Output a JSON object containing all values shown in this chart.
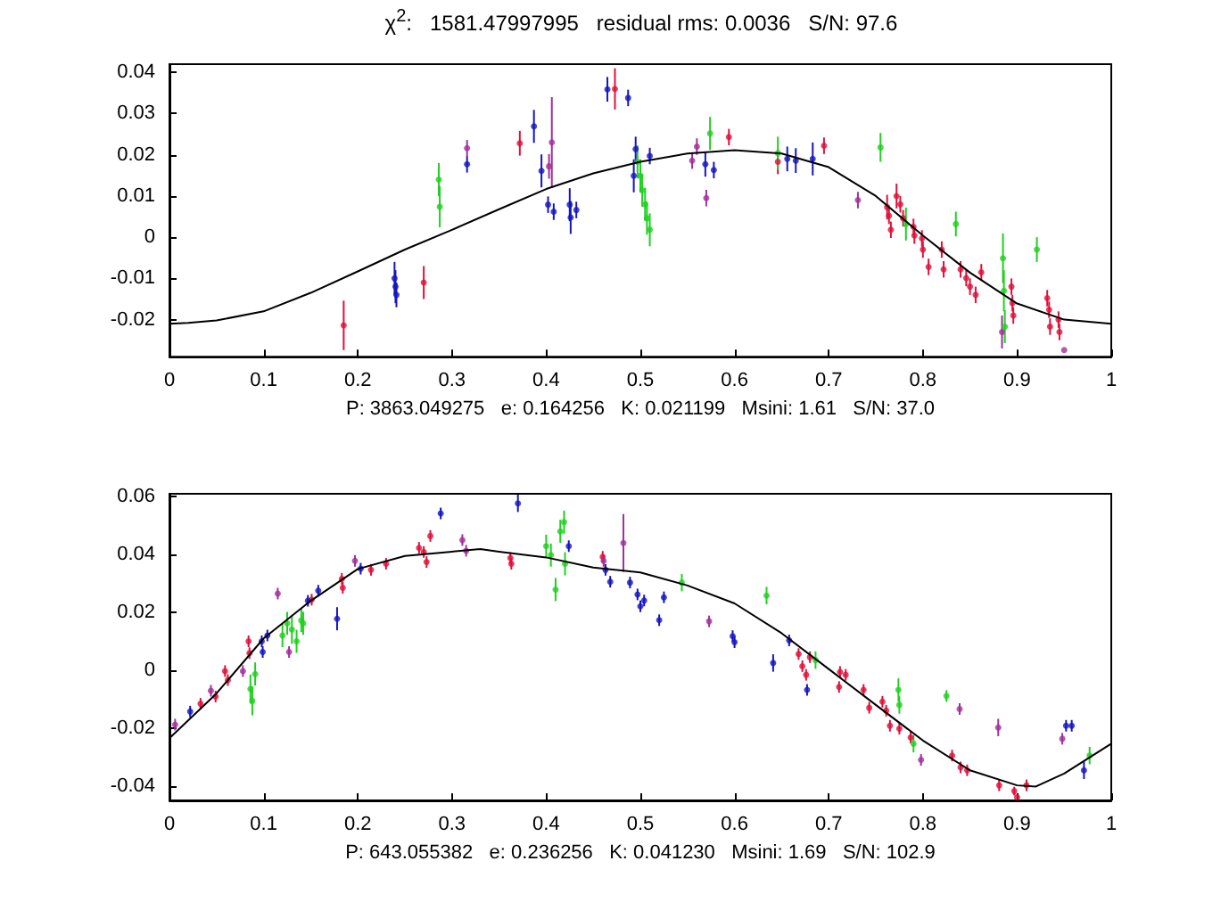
{
  "chart_data": [
    {
      "type": "scatter",
      "title": "χ$^{2}$:   1581.47997995   residual rms: 0.0036   S/N: 97.6",
      "xlabel": "P: 3863.049275   e: 0.164256   K: 0.021199   Msini: 1.61   S/N: 37.0",
      "marker": "circle",
      "xlim": [
        0,
        1
      ],
      "xticks": [
        0,
        0.1,
        0.2,
        0.3,
        0.4,
        0.5,
        0.6,
        0.7,
        0.8,
        0.9,
        1
      ],
      "ylim": [
        -0.029,
        0.042
      ],
      "yticks": [
        -0.02,
        -0.01,
        0,
        0.01,
        0.02,
        0.03,
        0.04
      ],
      "series": [
        {
          "color": "#e0103a",
          "x": [
            0.185,
            0.27,
            0.372,
            0.473,
            0.594,
            0.646,
            0.695,
            0.762,
            0.764,
            0.766,
            0.772,
            0.776,
            0.779,
            0.79,
            0.791,
            0.799,
            0.8,
            0.806,
            0.82,
            0.822,
            0.84,
            0.846,
            0.85,
            0.856,
            0.862,
            0.894,
            0.895,
            0.896,
            0.932,
            0.934,
            0.935,
            0.944,
            0.945
          ],
          "values": [
            -0.0214,
            -0.011,
            0.0228,
            0.036,
            0.0243,
            0.0183,
            0.0222,
            0.0073,
            0.0052,
            0.0018,
            0.01,
            0.008,
            0.0046,
            0.0025,
            0.0004,
            -0.0003,
            -0.003,
            -0.0072,
            -0.003,
            -0.0078,
            -0.0078,
            -0.0099,
            -0.012,
            -0.014,
            -0.0085,
            -0.012,
            -0.016,
            -0.019,
            -0.0148,
            -0.0176,
            -0.0217,
            -0.02,
            -0.023
          ],
          "errors": [
            0.006,
            0.004,
            0.003,
            0.005,
            0.002,
            0.003,
            0.002,
            0.003,
            0.002,
            0.002,
            0.003,
            0.002,
            0.002,
            0.002,
            0.002,
            0.002,
            0.002,
            0.002,
            0.002,
            0.002,
            0.002,
            0.002,
            0.002,
            0.002,
            0.002,
            0.002,
            0.002,
            0.002,
            0.002,
            0.002,
            0.002,
            0.002,
            0.002
          ]
        },
        {
          "color": "#20d020",
          "x": [
            0.286,
            0.287,
            0.497,
            0.5,
            0.502,
            0.505,
            0.507,
            0.51,
            0.574,
            0.646,
            0.755,
            0.782,
            0.835,
            0.885,
            0.886,
            0.887,
            0.921
          ],
          "values": [
            0.014,
            0.0074,
            0.0183,
            0.0149,
            0.0114,
            0.008,
            0.0046,
            0.0018,
            0.0252,
            0.0204,
            0.0218,
            0.0032,
            0.0032,
            -0.0051,
            -0.013,
            -0.0217,
            -0.003
          ],
          "errors": [
            0.004,
            0.005,
            0.004,
            0.004,
            0.004,
            0.004,
            0.004,
            0.004,
            0.004,
            0.004,
            0.0035,
            0.004,
            0.003,
            0.006,
            0.005,
            0.004,
            0.003
          ]
        },
        {
          "color": "#1515c0",
          "x": [
            0.239,
            0.24,
            0.241,
            0.316,
            0.387,
            0.395,
            0.402,
            0.408,
            0.425,
            0.426,
            0.432,
            0.465,
            0.487,
            0.495,
            0.493,
            0.51,
            0.569,
            0.578,
            0.656,
            0.665,
            0.683
          ],
          "values": [
            -0.01,
            -0.012,
            -0.014,
            0.0177,
            0.0269,
            0.0161,
            0.0079,
            0.0062,
            0.0079,
            0.0048,
            0.0066,
            0.0359,
            0.0338,
            0.0214,
            0.0149,
            0.0197,
            0.0177,
            0.0163,
            0.019,
            0.0186,
            0.019
          ],
          "errors": [
            0.004,
            0.004,
            0.003,
            0.002,
            0.004,
            0.004,
            0.002,
            0.002,
            0.004,
            0.004,
            0.002,
            0.003,
            0.002,
            0.003,
            0.004,
            0.002,
            0.003,
            0.002,
            0.003,
            0.003,
            0.004
          ]
        },
        {
          "color": "#a0309a",
          "x": [
            0.316,
            0.403,
            0.406,
            0.555,
            0.56,
            0.57,
            0.731,
            0.884,
            0.95
          ],
          "values": [
            0.0216,
            0.0172,
            0.023,
            0.0186,
            0.022,
            0.0095,
            0.009,
            -0.023,
            -0.0274
          ],
          "errors": [
            0.002,
            0.003,
            0.011,
            0.002,
            0.002,
            0.002,
            0.002,
            0.004,
            null
          ]
        },
        {
          "type": "line",
          "color": "#000000",
          "marker": "none",
          "line_style": "solid",
          "x": [
            0,
            0.02,
            0.05,
            0.1,
            0.15,
            0.2,
            0.25,
            0.3,
            0.35,
            0.4,
            0.45,
            0.5,
            0.55,
            0.6,
            0.65,
            0.7,
            0.75,
            0.8,
            0.85,
            0.9,
            0.95,
            1
          ],
          "values": [
            -0.021,
            -0.0208,
            -0.0202,
            -0.018,
            -0.0135,
            -0.0083,
            -0.003,
            0.0018,
            0.0068,
            0.0117,
            0.0155,
            0.0183,
            0.0203,
            0.0211,
            0.0203,
            0.017,
            0.01,
            0.0004,
            -0.0086,
            -0.0161,
            -0.02,
            -0.021
          ]
        }
      ]
    },
    {
      "type": "scatter",
      "xlabel": "P: 643.055382   e: 0.236256   K: 0.041230   Msini: 1.69   S/N: 102.9",
      "marker": "circle",
      "xlim": [
        0,
        1
      ],
      "xticks": [
        0,
        0.1,
        0.2,
        0.3,
        0.4,
        0.5,
        0.6,
        0.7,
        0.8,
        0.9,
        1
      ],
      "ylim": [
        -0.045,
        0.061
      ],
      "yticks": [
        -0.04,
        -0.02,
        0,
        0.02,
        0.04,
        0.06
      ],
      "series": [
        {
          "color": "#e0103a",
          "x": [
            0.033,
            0.049,
            0.059,
            0.062,
            0.084,
            0.085,
            0.151,
            0.183,
            0.184,
            0.214,
            0.23,
            0.265,
            0.27,
            0.273,
            0.277,
            0.362,
            0.363,
            0.46,
            0.668,
            0.672,
            0.676,
            0.68,
            0.711,
            0.712,
            0.718,
            0.737,
            0.743,
            0.757,
            0.761,
            0.765,
            0.775,
            0.787,
            0.831,
            0.84,
            0.847,
            0.881,
            0.897,
            0.9,
            0.91
          ],
          "values": [
            -0.0116,
            -0.0091,
            -0.0003,
            -0.0034,
            0.01,
            0.0059,
            0.0244,
            0.0316,
            0.0285,
            0.0347,
            0.0368,
            0.0423,
            0.0409,
            0.0374,
            0.0464,
            0.0388,
            0.0368,
            0.0392,
            0.0056,
            0.0014,
            -0.0016,
            0.0045,
            -0.0058,
            -0.0006,
            -0.0016,
            -0.0068,
            -0.013,
            -0.0109,
            -0.014,
            -0.0192,
            -0.0202,
            -0.0233,
            -0.0295,
            -0.0336,
            -0.0346,
            -0.0398,
            -0.0418,
            -0.0439,
            -0.0398
          ],
          "errors": [
            0.002,
            0.002,
            0.002,
            0.002,
            0.002,
            0.002,
            0.002,
            0.002,
            0.002,
            0.002,
            0.002,
            0.002,
            0.002,
            0.002,
            0.002,
            0.002,
            0.002,
            0.002,
            0.002,
            0.002,
            0.002,
            0.002,
            0.002,
            0.002,
            0.002,
            0.002,
            0.002,
            0.002,
            0.002,
            0.002,
            0.002,
            0.002,
            0.002,
            0.002,
            0.002,
            0.002,
            0.0015,
            null,
            0.002
          ]
        },
        {
          "color": "#20d020",
          "x": [
            0.086,
            0.088,
            0.091,
            0.12,
            0.125,
            0.13,
            0.135,
            0.14,
            0.142,
            0.4,
            0.405,
            0.41,
            0.415,
            0.419,
            0.42,
            0.544,
            0.634,
            0.686,
            0.774,
            0.775,
            0.79,
            0.825,
            0.977
          ],
          "values": [
            -0.0065,
            -0.0106,
            -0.0013,
            0.012,
            0.0162,
            0.0141,
            0.01,
            0.0172,
            0.0162,
            0.0429,
            0.0398,
            0.0279,
            0.048,
            0.0512,
            0.0368,
            0.0303,
            0.0258,
            0.0035,
            -0.0068,
            -0.012,
            -0.0254,
            -0.0089,
            -0.0295
          ],
          "errors": [
            0.005,
            0.005,
            0.004,
            0.004,
            0.004,
            0.005,
            0.004,
            0.004,
            0.004,
            0.004,
            0.004,
            0.004,
            0.004,
            0.004,
            0.004,
            0.003,
            0.003,
            0.003,
            0.004,
            0.003,
            0.003,
            0.002,
            0.003
          ]
        },
        {
          "color": "#1515c0",
          "x": [
            0.022,
            0.098,
            0.099,
            0.104,
            0.147,
            0.158,
            0.178,
            0.203,
            0.288,
            0.37,
            0.424,
            0.463,
            0.468,
            0.489,
            0.497,
            0.5,
            0.504,
            0.52,
            0.525,
            0.598,
            0.6,
            0.641,
            0.658,
            0.677,
            0.952,
            0.958,
            0.971
          ],
          "values": [
            -0.0143,
            0.01,
            0.0063,
            0.012,
            0.024,
            0.0275,
            0.0178,
            0.0351,
            0.0542,
            0.0577,
            0.0429,
            0.0347,
            0.0306,
            0.0303,
            0.0262,
            0.0221,
            0.0241,
            0.0173,
            0.0252,
            0.0118,
            0.0097,
            0.0025,
            0.0103,
            -0.0068,
            -0.0192,
            -0.0192,
            -0.0346
          ],
          "errors": [
            0.002,
            0.002,
            0.002,
            0.002,
            0.002,
            0.002,
            0.004,
            0.002,
            0.002,
            0.003,
            0.002,
            0.002,
            0.002,
            0.002,
            0.002,
            0.002,
            0.002,
            0.002,
            0.002,
            0.002,
            0.002,
            0.003,
            0.002,
            0.002,
            0.002,
            0.002,
            0.003
          ]
        },
        {
          "color": "#a0309a",
          "x": [
            0.006,
            0.044,
            0.078,
            0.115,
            0.127,
            0.197,
            0.311,
            0.315,
            0.461,
            0.482,
            0.573,
            0.798,
            0.839,
            0.88,
            0.948
          ],
          "values": [
            -0.0188,
            -0.0071,
            -0.0003,
            0.0265,
            0.0063,
            0.0378,
            0.045,
            0.0413,
            0.0378,
            0.044,
            0.0169,
            -0.031,
            -0.0134,
            -0.0198,
            -0.0237
          ],
          "errors": [
            0.002,
            0.002,
            0.002,
            0.002,
            0.002,
            0.002,
            0.002,
            0.002,
            0.002,
            0.01,
            0.002,
            0.002,
            0.002,
            0.003,
            0.002
          ]
        },
        {
          "type": "line",
          "color": "#000000",
          "marker": "none",
          "line_style": "solid",
          "x": [
            0,
            0.05,
            0.1,
            0.15,
            0.2,
            0.25,
            0.3,
            0.33,
            0.35,
            0.4,
            0.45,
            0.5,
            0.55,
            0.6,
            0.65,
            0.7,
            0.75,
            0.8,
            0.85,
            0.9,
            0.92,
            0.95,
            1
          ],
          "values": [
            -0.0235,
            -0.008,
            0.011,
            0.024,
            0.035,
            0.0395,
            0.041,
            0.0419,
            0.041,
            0.039,
            0.0355,
            0.0338,
            0.0293,
            0.0231,
            0.0128,
            0.0004,
            -0.012,
            -0.0243,
            -0.0346,
            -0.0398,
            -0.0402,
            -0.0357,
            -0.0254
          ]
        }
      ]
    }
  ]
}
